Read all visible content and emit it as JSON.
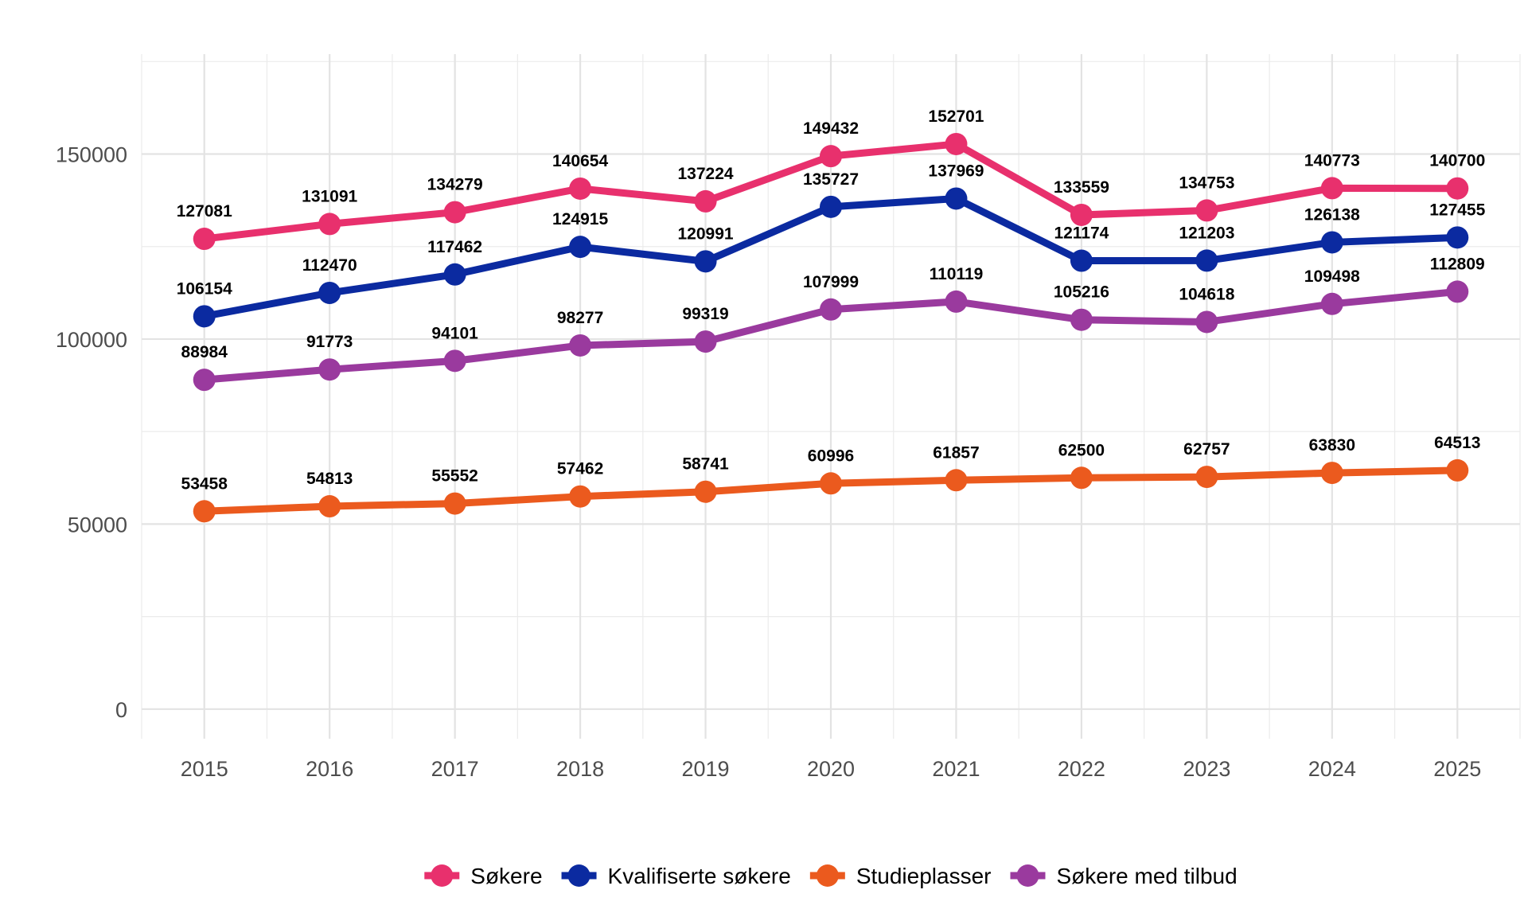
{
  "chart_data": {
    "type": "line",
    "title": "",
    "xlabel": "",
    "ylabel": "",
    "x": [
      2015,
      2016,
      2017,
      2018,
      2019,
      2020,
      2021,
      2022,
      2023,
      2024,
      2025
    ],
    "x_tick_labels": [
      "2015",
      "2016",
      "2017",
      "2018",
      "2019",
      "2020",
      "2021",
      "2022",
      "2023",
      "2024",
      "2025"
    ],
    "y_ticks": [
      0,
      50000,
      100000,
      150000
    ],
    "y_tick_labels": [
      "0",
      "50000",
      "100000",
      "150000"
    ],
    "ylim": [
      -8000,
      177000
    ],
    "xlim": [
      2014.5,
      2025.5
    ],
    "grid": true,
    "legend_position": "bottom",
    "series": [
      {
        "name": "Søkere",
        "color": "#E8306D",
        "values": [
          127081,
          131091,
          134279,
          140654,
          137224,
          149432,
          152701,
          133559,
          134753,
          140773,
          140700
        ],
        "labels": [
          "127081",
          "131091",
          "134279",
          "140654",
          "137224",
          "149432",
          "152701",
          "133559",
          "134753",
          "140773",
          "140700"
        ]
      },
      {
        "name": "Kvalifiserte søkere",
        "color": "#0B2AA0",
        "values": [
          106154,
          112470,
          117462,
          124915,
          120991,
          135727,
          137969,
          121174,
          121203,
          126138,
          127455
        ],
        "labels": [
          "106154",
          "112470",
          "117462",
          "124915",
          "120991",
          "135727",
          "137969",
          "121174",
          "121203",
          "126138",
          "127455"
        ]
      },
      {
        "name": "Studieplasser",
        "color": "#EB5A1E",
        "values": [
          53458,
          54813,
          55552,
          57462,
          58741,
          60996,
          61857,
          62500,
          62757,
          63830,
          64513
        ],
        "labels": [
          "53458",
          "54813",
          "55552",
          "57462",
          "58741",
          "60996",
          "61857",
          "62500",
          "62757",
          "63830",
          "64513"
        ]
      },
      {
        "name": "Søkere med tilbud",
        "color": "#9A3A9E",
        "values": [
          88984,
          91773,
          94101,
          98277,
          99319,
          107999,
          110119,
          105216,
          104618,
          109498,
          112809
        ],
        "labels": [
          "88984",
          "91773",
          "94101",
          "98277",
          "99319",
          "107999",
          "110119",
          "105216",
          "104618",
          "109498",
          "112809"
        ]
      }
    ]
  }
}
